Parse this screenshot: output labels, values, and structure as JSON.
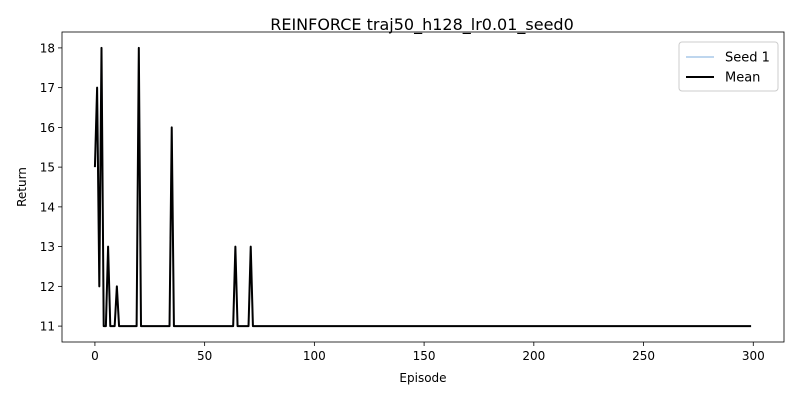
{
  "chart_data": {
    "type": "line",
    "title": "REINFORCE traj50_h128_lr0.01_seed0",
    "xlabel": "Episode",
    "ylabel": "Return",
    "xlim": [
      -15,
      314
    ],
    "ylim": [
      10.6,
      18.4
    ],
    "xticks": [
      0,
      50,
      100,
      150,
      200,
      250,
      300
    ],
    "yticks": [
      11,
      12,
      13,
      14,
      15,
      16,
      17,
      18
    ],
    "legend_position": "top-right",
    "series": [
      {
        "name": "Seed 1",
        "color": "#a8c8e8",
        "x": [
          0,
          1,
          2,
          3,
          4,
          5,
          6,
          7,
          8,
          9,
          10,
          11,
          19,
          20,
          21,
          34,
          35,
          36,
          63,
          64,
          65,
          70,
          71,
          72,
          299
        ],
        "y": [
          15,
          17,
          12,
          18,
          11,
          11,
          13,
          11,
          11,
          11,
          12,
          11,
          11,
          18,
          11,
          11,
          16,
          11,
          11,
          13,
          11,
          11,
          13,
          11,
          11
        ]
      },
      {
        "name": "Mean",
        "color": "#000000",
        "x": [
          0,
          1,
          2,
          3,
          4,
          5,
          6,
          7,
          8,
          9,
          10,
          11,
          19,
          20,
          21,
          34,
          35,
          36,
          63,
          64,
          65,
          70,
          71,
          72,
          299
        ],
        "y": [
          15,
          17,
          12,
          18,
          11,
          11,
          13,
          11,
          11,
          11,
          12,
          11,
          11,
          18,
          11,
          11,
          16,
          11,
          11,
          13,
          11,
          11,
          13,
          11,
          11
        ]
      }
    ]
  }
}
